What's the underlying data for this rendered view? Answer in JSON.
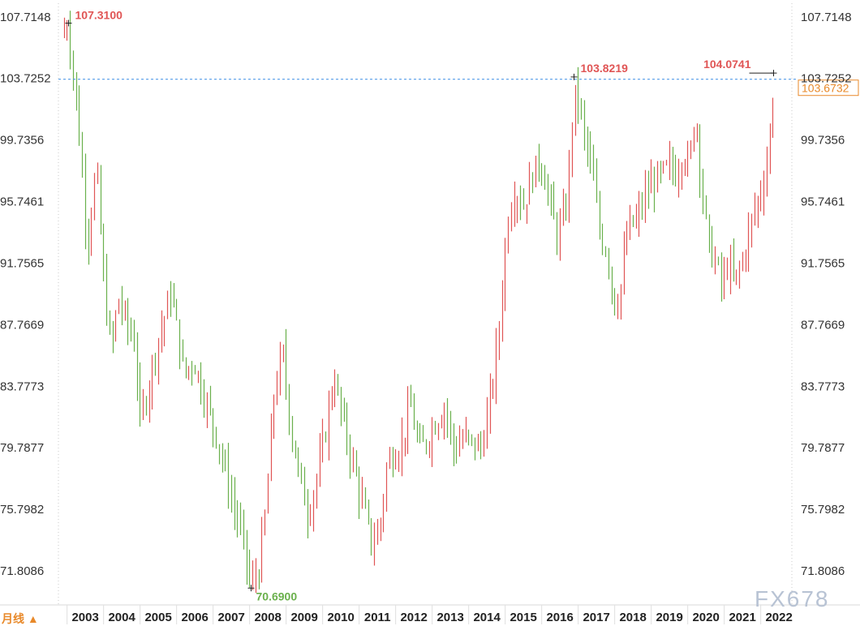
{
  "chart_data": {
    "type": "ohlc",
    "period_label": "月线 ▲",
    "watermark": "FX678",
    "y_ticks": [
      "107.7148",
      "103.7252",
      "99.7356",
      "95.7461",
      "91.7565",
      "87.7669",
      "83.7773",
      "79.7877",
      "75.7982",
      "71.8086"
    ],
    "ylim": [
      69.6,
      108.6
    ],
    "x_ticks": [
      "2003",
      "2004",
      "2005",
      "2006",
      "2007",
      "2008",
      "2009",
      "2010",
      "2011",
      "2012",
      "2013",
      "2014",
      "2015",
      "2016",
      "2017",
      "2018",
      "2019",
      "2020",
      "2021",
      "2022"
    ],
    "start_year": 2002.83,
    "reference_line": 103.6732,
    "last_price_label": "103.6732",
    "colors": {
      "up": "#e05555",
      "down": "#6ab04c",
      "grid": "#c8c8c8",
      "ref": "#3a8ee6",
      "last": "#e8892a"
    },
    "annotations": [
      {
        "id": "high-2002",
        "text": "107.3100",
        "value": 107.31,
        "year": 2003.02,
        "color": "red"
      },
      {
        "id": "low-2008",
        "text": "70.6900",
        "value": 70.69,
        "year": 2008.03,
        "color": "green"
      },
      {
        "id": "high-2017",
        "text": "103.8219",
        "value": 103.8219,
        "year": 2016.87,
        "color": "red"
      },
      {
        "id": "high-2022",
        "text": "104.0741",
        "value": 104.0741,
        "year": 2022.35,
        "color": "red"
      }
    ],
    "anchors": [
      [
        2002.83,
        106.5
      ],
      [
        2003.0,
        107.31
      ],
      [
        2003.15,
        104.5
      ],
      [
        2003.35,
        99.5
      ],
      [
        2003.55,
        93.0
      ],
      [
        2003.8,
        98.0
      ],
      [
        2004.0,
        90.5
      ],
      [
        2004.2,
        86.0
      ],
      [
        2004.4,
        89.5
      ],
      [
        2004.6,
        88.0
      ],
      [
        2004.85,
        86.5
      ],
      [
        2005.0,
        81.5
      ],
      [
        2005.2,
        83.5
      ],
      [
        2005.45,
        86.5
      ],
      [
        2005.7,
        88.5
      ],
      [
        2005.85,
        90.0
      ],
      [
        2006.0,
        87.5
      ],
      [
        2006.2,
        84.5
      ],
      [
        2006.45,
        85.5
      ],
      [
        2006.7,
        83.5
      ],
      [
        2006.9,
        82.0
      ],
      [
        2007.1,
        80.5
      ],
      [
        2007.3,
        78.5
      ],
      [
        2007.55,
        76.0
      ],
      [
        2007.8,
        74.0
      ],
      [
        2008.03,
        70.69
      ],
      [
        2008.25,
        72.0
      ],
      [
        2008.45,
        76.0
      ],
      [
        2008.65,
        83.0
      ],
      [
        2008.9,
        86.0
      ],
      [
        2009.1,
        81.5
      ],
      [
        2009.35,
        78.0
      ],
      [
        2009.6,
        75.5
      ],
      [
        2009.85,
        78.0
      ],
      [
        2010.05,
        80.5
      ],
      [
        2010.3,
        84.5
      ],
      [
        2010.5,
        82.0
      ],
      [
        2010.75,
        79.5
      ],
      [
        2010.95,
        77.5
      ],
      [
        2011.15,
        75.5
      ],
      [
        2011.35,
        73.5
      ],
      [
        2011.55,
        74.5
      ],
      [
        2011.75,
        78.5
      ],
      [
        2011.95,
        79.5
      ],
      [
        2012.15,
        80.0
      ],
      [
        2012.4,
        82.5
      ],
      [
        2012.65,
        79.5
      ],
      [
        2012.9,
        80.5
      ],
      [
        2013.1,
        81.5
      ],
      [
        2013.35,
        82.5
      ],
      [
        2013.6,
        79.5
      ],
      [
        2013.85,
        80.5
      ],
      [
        2014.1,
        80.0
      ],
      [
        2014.35,
        79.8
      ],
      [
        2014.6,
        83.0
      ],
      [
        2014.85,
        88.0
      ],
      [
        2015.05,
        94.5
      ],
      [
        2015.25,
        96.5
      ],
      [
        2015.5,
        95.5
      ],
      [
        2015.75,
        97.5
      ],
      [
        2015.95,
        98.5
      ],
      [
        2016.15,
        96.5
      ],
      [
        2016.4,
        93.5
      ],
      [
        2016.65,
        95.0
      ],
      [
        2016.85,
        101.5
      ],
      [
        2016.95,
        103.2
      ],
      [
        2017.15,
        100.0
      ],
      [
        2017.35,
        98.0
      ],
      [
        2017.6,
        93.5
      ],
      [
        2017.8,
        92.5
      ],
      [
        2017.98,
        89.0
      ],
      [
        2018.15,
        90.0
      ],
      [
        2018.35,
        94.0
      ],
      [
        2018.6,
        94.5
      ],
      [
        2018.8,
        96.0
      ],
      [
        2019.05,
        97.0
      ],
      [
        2019.3,
        97.5
      ],
      [
        2019.5,
        98.0
      ],
      [
        2019.7,
        97.5
      ],
      [
        2019.85,
        99.0
      ],
      [
        2020.05,
        98.0
      ],
      [
        2020.2,
        102.0
      ],
      [
        2020.35,
        97.5
      ],
      [
        2020.55,
        93.0
      ],
      [
        2020.8,
        91.5
      ],
      [
        2020.95,
        90.0
      ],
      [
        2021.1,
        92.0
      ],
      [
        2021.25,
        90.5
      ],
      [
        2021.45,
        91.5
      ],
      [
        2021.6,
        93.0
      ],
      [
        2021.8,
        95.0
      ],
      [
        2021.95,
        96.0
      ],
      [
        2022.15,
        98.0
      ],
      [
        2022.3,
        101.5
      ],
      [
        2022.38,
        103.6732
      ]
    ]
  }
}
